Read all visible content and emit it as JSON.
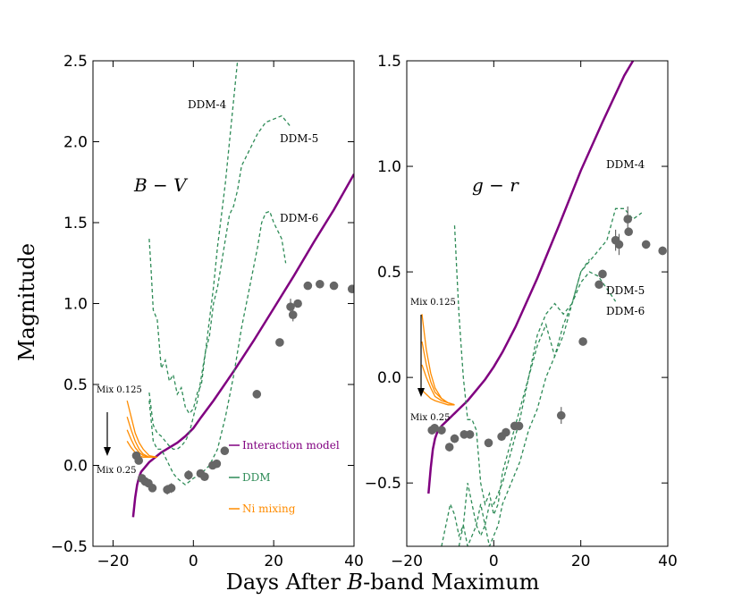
{
  "colors": {
    "interaction": "#800080",
    "ddm": "#2e8b57",
    "ni": "#ff8c00",
    "obs": "#666666"
  },
  "figure": {
    "xlabel_prefix": "Days After ",
    "xlabel_italic": "B",
    "xlabel_suffix": "-band Maximum"
  },
  "chart_data": [
    {
      "type": "line",
      "title": "B − V",
      "panel_label": "B − V",
      "xlabel": "Days After B-band Maximum",
      "ylabel": "Magnitude",
      "xlim": [
        -25,
        40
      ],
      "ylim": [
        -0.5,
        2.5
      ],
      "xticks": [
        -20,
        0,
        20,
        40
      ],
      "xtick_labels": [
        "−20",
        "0",
        "20",
        "40"
      ],
      "yticks": [
        -0.5,
        0.0,
        0.5,
        1.0,
        1.5,
        2.0,
        2.5
      ],
      "ytick_labels": [
        "−0.5",
        "0.0",
        "0.5",
        "1.0",
        "1.5",
        "2.0",
        "2.5"
      ],
      "legend": {
        "location": "lower-right",
        "entries": [
          {
            "label": "Interaction model",
            "color": "#800080"
          },
          {
            "label": "DDM",
            "color": "#2e8b57"
          },
          {
            "label": "Ni mixing",
            "color": "#ff8c00"
          }
        ]
      },
      "annotations": {
        "ddm4": "DDM-4",
        "ddm5": "DDM-5",
        "ddm6": "DDM-6",
        "mix_top": "Mix 0.125",
        "mix_bottom": "Mix 0.25"
      },
      "series": [
        {
          "name": "Interaction model",
          "style": "solid",
          "x": [
            -15,
            -14.5,
            -14,
            -13.5,
            -13,
            -12,
            -11,
            -10,
            -9,
            -8,
            -6,
            -4,
            -2,
            0,
            2,
            5,
            10,
            15,
            20,
            25,
            30,
            35,
            40
          ],
          "y": [
            -0.32,
            -0.2,
            -0.12,
            -0.07,
            -0.04,
            -0.01,
            0.02,
            0.04,
            0.06,
            0.08,
            0.11,
            0.14,
            0.18,
            0.23,
            0.3,
            0.4,
            0.58,
            0.77,
            0.97,
            1.17,
            1.38,
            1.58,
            1.8
          ]
        },
        {
          "name": "DDM-4",
          "style": "dashed",
          "x": [
            -11,
            -10.5,
            -10,
            -9,
            -8,
            -7,
            -6,
            -5,
            -4,
            -3,
            -2,
            -1,
            0,
            1,
            2,
            3,
            4,
            5,
            6,
            7,
            8,
            9,
            10,
            11
          ],
          "y": [
            1.4,
            1.2,
            0.96,
            0.9,
            0.6,
            0.65,
            0.52,
            0.56,
            0.44,
            0.48,
            0.36,
            0.32,
            0.35,
            0.45,
            0.5,
            0.7,
            0.9,
            1.1,
            1.35,
            1.55,
            1.75,
            2.0,
            2.25,
            2.5
          ]
        },
        {
          "name": "DDM-5",
          "style": "dashed",
          "x": [
            -11,
            -10,
            -9,
            -8,
            -7,
            -6,
            -5,
            -4,
            -3,
            -2,
            -1,
            0,
            1,
            2,
            3,
            4,
            5,
            6,
            7,
            8,
            9,
            10,
            11,
            12,
            14,
            16,
            18,
            20,
            22,
            24
          ],
          "y": [
            0.45,
            0.25,
            0.2,
            0.18,
            0.15,
            0.12,
            0.1,
            0.1,
            0.12,
            0.15,
            0.2,
            0.3,
            0.4,
            0.55,
            0.7,
            0.8,
            1.0,
            1.1,
            1.25,
            1.4,
            1.55,
            1.6,
            1.7,
            1.85,
            1.95,
            2.05,
            2.12,
            2.14,
            2.16,
            2.1
          ]
        },
        {
          "name": "DDM-6",
          "style": "dashed",
          "x": [
            -11,
            -10,
            -9,
            -8,
            -7,
            -6,
            -5,
            -4,
            -3,
            -2,
            -1,
            0,
            2,
            4,
            6,
            8,
            10,
            12,
            14,
            16,
            17,
            18,
            19,
            20,
            22,
            23
          ],
          "y": [
            0.4,
            0.15,
            0.1,
            0.1,
            0.05,
            0.0,
            -0.05,
            -0.08,
            -0.1,
            -0.12,
            -0.1,
            -0.08,
            -0.05,
            0.0,
            0.1,
            0.3,
            0.55,
            0.85,
            1.1,
            1.35,
            1.5,
            1.56,
            1.57,
            1.5,
            1.4,
            1.25
          ]
        },
        {
          "name": "Mix 0.125",
          "style": "solid",
          "x": [
            -16.5,
            -15.5,
            -14.5,
            -13.5,
            -12.5,
            -11,
            -9
          ],
          "y": [
            0.4,
            0.3,
            0.2,
            0.14,
            0.1,
            0.06,
            0.05
          ]
        },
        {
          "name": "Ni mixing (intermediate 1)",
          "style": "solid",
          "x": [
            -16.5,
            -15.5,
            -14.5,
            -13.5,
            -12.5,
            -11,
            -9
          ],
          "y": [
            0.3,
            0.22,
            0.15,
            0.1,
            0.07,
            0.05,
            0.05
          ]
        },
        {
          "name": "Ni mixing (intermediate 2)",
          "style": "solid",
          "x": [
            -16.5,
            -15.5,
            -14.5,
            -13.5,
            -12.5,
            -11,
            -9
          ],
          "y": [
            0.22,
            0.16,
            0.11,
            0.08,
            0.06,
            0.05,
            0.05
          ]
        },
        {
          "name": "Mix 0.25",
          "style": "solid",
          "x": [
            -16.5,
            -15.5,
            -14.5,
            -13.5,
            -12.5,
            -11,
            -9
          ],
          "y": [
            0.15,
            0.11,
            0.08,
            0.06,
            0.05,
            0.05,
            0.05
          ]
        }
      ],
      "observations": {
        "x": [
          -14.2,
          -13.6,
          -12.8,
          -12.0,
          -11.2,
          -10.2,
          -6.5,
          -5.5,
          -1.2,
          1.8,
          2.8,
          4.8,
          5.8,
          7.8,
          15.8,
          21.5,
          24.2,
          24.8,
          26.0,
          28.5,
          31.5,
          35.0,
          39.5
        ],
        "y": [
          0.06,
          0.03,
          -0.08,
          -0.1,
          -0.11,
          -0.14,
          -0.15,
          -0.14,
          -0.06,
          -0.05,
          -0.07,
          0.0,
          0.01,
          0.09,
          0.44,
          0.76,
          0.98,
          0.93,
          1.0,
          1.11,
          1.12,
          1.11,
          1.09
        ],
        "err": [
          0.02,
          0.02,
          0.02,
          0.02,
          0.02,
          0.02,
          0.03,
          0.03,
          0.03,
          0.02,
          0.02,
          0.02,
          0.02,
          0.02,
          0.02,
          0.02,
          0.05,
          0.04,
          0.02,
          0.02,
          0.02,
          0.02,
          0.02
        ]
      }
    },
    {
      "type": "line",
      "title": "g − r",
      "panel_label": "g − r",
      "xlabel": "Days After B-band Maximum",
      "ylabel": "",
      "xlim": [
        -20,
        40
      ],
      "ylim": [
        -0.8,
        1.5
      ],
      "xticks": [
        -20,
        0,
        20,
        40
      ],
      "xtick_labels": [
        "−20",
        "0",
        "20",
        "40"
      ],
      "yticks": [
        -0.5,
        0.0,
        0.5,
        1.0,
        1.5
      ],
      "ytick_labels": [
        "−0.5",
        "0.0",
        "0.5",
        "1.0",
        "1.5"
      ],
      "annotations": {
        "ddm4": "DDM-4",
        "ddm5": "DDM-5",
        "ddm6": "DDM-6",
        "mix_top": "Mix 0.125",
        "mix_bottom": "Mix 0.25"
      },
      "series": [
        {
          "name": "Interaction model",
          "style": "solid",
          "x": [
            -15,
            -14.5,
            -14,
            -13.5,
            -13,
            -12,
            -11,
            -10,
            -9,
            -8,
            -6,
            -4,
            -2,
            0,
            2,
            5,
            10,
            15,
            20,
            25,
            30,
            32
          ],
          "y": [
            -0.55,
            -0.43,
            -0.34,
            -0.29,
            -0.26,
            -0.23,
            -0.21,
            -0.19,
            -0.17,
            -0.15,
            -0.11,
            -0.06,
            -0.01,
            0.05,
            0.12,
            0.24,
            0.47,
            0.72,
            0.98,
            1.21,
            1.43,
            1.5
          ]
        },
        {
          "name": "DDM-4",
          "style": "dashed",
          "x": [
            -9,
            -8.5,
            -8,
            -7.5,
            -7,
            -6.5,
            -6,
            -5,
            -4,
            -3,
            -2,
            -1,
            0,
            1,
            2,
            4,
            6,
            8,
            10,
            12,
            14,
            16,
            18,
            20,
            22
          ],
          "y": [
            0.72,
            0.5,
            0.3,
            0.15,
            0.0,
            -0.1,
            -0.2,
            -0.2,
            -0.25,
            -0.5,
            -0.6,
            -0.55,
            -0.65,
            -0.6,
            -0.45,
            -0.3,
            -0.15,
            0.0,
            0.2,
            0.3,
            0.35,
            0.3,
            0.35,
            0.5,
            0.56
          ]
        },
        {
          "name": "DDM-5",
          "style": "dashed",
          "x": [
            -8,
            -7,
            -6,
            -5,
            -4,
            -3,
            -2,
            -1,
            0,
            1,
            2,
            4,
            6,
            8,
            10,
            12,
            14,
            16,
            18,
            20,
            22,
            24,
            26,
            28,
            30,
            32,
            34
          ],
          "y": [
            -0.8,
            -0.7,
            -0.5,
            -0.6,
            -0.7,
            -0.6,
            -0.7,
            -0.6,
            -0.6,
            -0.55,
            -0.5,
            -0.35,
            -0.2,
            0.0,
            0.15,
            0.25,
            0.1,
            0.2,
            0.35,
            0.5,
            0.55,
            0.6,
            0.65,
            0.8,
            0.8,
            0.75,
            0.78
          ]
        },
        {
          "name": "DDM-6",
          "style": "dashed",
          "x": [
            -12,
            -11,
            -10,
            -9,
            -8,
            -7,
            -6,
            -5,
            -4,
            -3,
            -2,
            -1,
            0,
            1,
            2,
            4,
            6,
            8,
            10,
            12,
            14,
            16,
            18,
            20,
            22,
            24,
            26,
            28
          ],
          "y": [
            -0.8,
            -0.7,
            -0.6,
            -0.65,
            -0.75,
            -0.7,
            -0.8,
            -0.75,
            -0.7,
            -0.75,
            -0.7,
            -0.8,
            -0.75,
            -0.7,
            -0.6,
            -0.5,
            -0.4,
            -0.25,
            -0.15,
            0.0,
            0.1,
            0.25,
            0.35,
            0.45,
            0.5,
            0.48,
            0.42,
            0.36
          ]
        },
        {
          "name": "Mix 0.125",
          "style": "solid",
          "x": [
            -16.5,
            -15.5,
            -14.5,
            -13.5,
            -12,
            -10.5,
            -9
          ],
          "y": [
            0.3,
            0.13,
            0.02,
            -0.05,
            -0.1,
            -0.12,
            -0.13
          ]
        },
        {
          "name": "Ni mixing (intermediate 1)",
          "style": "solid",
          "x": [
            -16.5,
            -15.5,
            -14.5,
            -13.5,
            -12,
            -10.5,
            -9
          ],
          "y": [
            0.17,
            0.06,
            -0.02,
            -0.07,
            -0.1,
            -0.12,
            -0.13
          ]
        },
        {
          "name": "Ni mixing (intermediate 2)",
          "style": "solid",
          "x": [
            -16.5,
            -15.5,
            -14.5,
            -13.5,
            -12,
            -10.5,
            -9
          ],
          "y": [
            0.06,
            0.0,
            -0.05,
            -0.09,
            -0.11,
            -0.12,
            -0.13
          ]
        },
        {
          "name": "Mix 0.25",
          "style": "solid",
          "x": [
            -16.5,
            -15.5,
            -14.5,
            -13.5,
            -12,
            -10.5,
            -9
          ],
          "y": [
            -0.06,
            -0.08,
            -0.1,
            -0.11,
            -0.12,
            -0.13,
            -0.13
          ]
        }
      ],
      "observations": {
        "x": [
          -14.2,
          -13.6,
          -12.0,
          -10.2,
          -9.0,
          -6.8,
          -5.5,
          -1.2,
          1.8,
          2.8,
          4.8,
          5.8,
          15.5,
          20.5,
          24.2,
          25.0,
          28.0,
          28.8,
          30.8,
          31.0,
          35.0,
          38.8
        ],
        "y": [
          -0.25,
          -0.24,
          -0.25,
          -0.33,
          -0.29,
          -0.27,
          -0.27,
          -0.31,
          -0.28,
          -0.26,
          -0.23,
          -0.23,
          -0.18,
          0.17,
          0.44,
          0.49,
          0.65,
          0.63,
          0.75,
          0.69,
          0.63,
          0.6
        ],
        "err": [
          0.02,
          0.02,
          0.02,
          0.02,
          0.02,
          0.02,
          0.02,
          0.02,
          0.02,
          0.02,
          0.02,
          0.02,
          0.04,
          0.02,
          0.02,
          0.02,
          0.05,
          0.05,
          0.06,
          0.02,
          0.02,
          0.02
        ]
      }
    }
  ]
}
